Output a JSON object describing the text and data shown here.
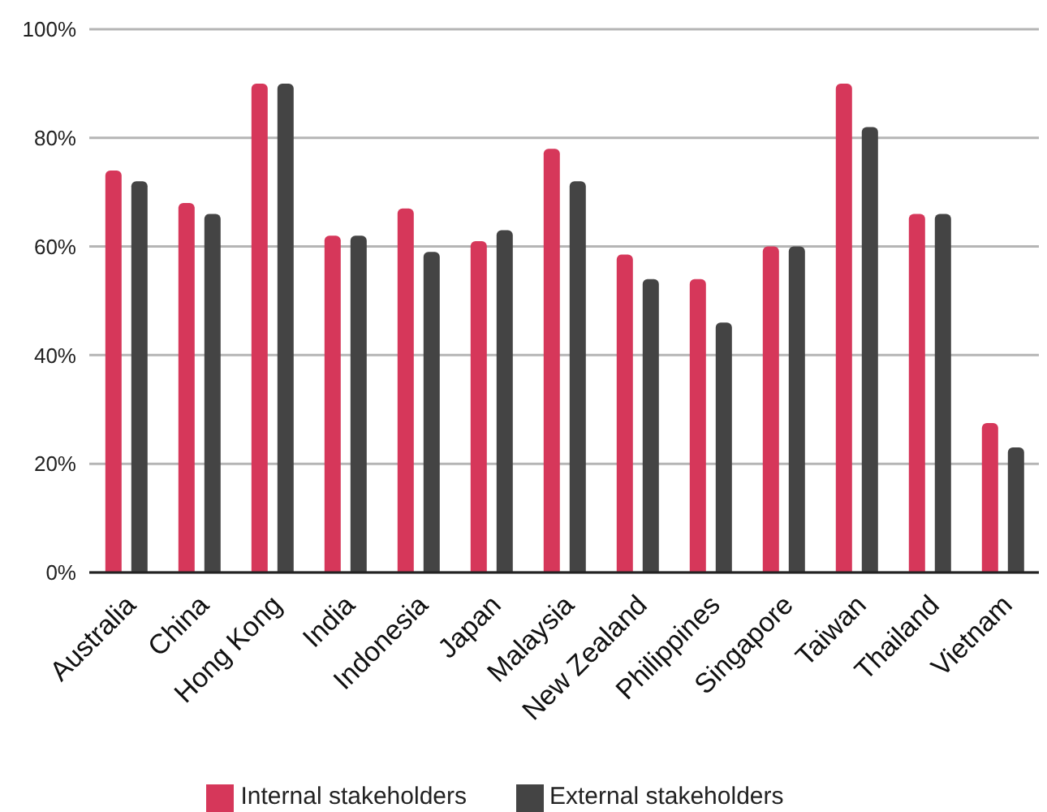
{
  "chart_data": {
    "type": "bar",
    "categories": [
      "Australia",
      "China",
      "Hong Kong",
      "India",
      "Indonesia",
      "Japan",
      "Malaysia",
      "New Zealand",
      "Philippines",
      "Singapore",
      "Taiwan",
      "Thailand",
      "Vietnam"
    ],
    "series": [
      {
        "name": "Internal stakeholders",
        "color": "#d6375a",
        "values": [
          74,
          68,
          90,
          62,
          67,
          61,
          78,
          58.5,
          54,
          60,
          90,
          66,
          27.5
        ]
      },
      {
        "name": "External stakeholders",
        "color": "#444444",
        "values": [
          72,
          66,
          90,
          62,
          59,
          63,
          72,
          54,
          46,
          60,
          82,
          66,
          23
        ]
      }
    ],
    "ylim": [
      0,
      100
    ],
    "yticks": [
      {
        "value": 0,
        "label": "0%"
      },
      {
        "value": 20,
        "label": "20%"
      },
      {
        "value": 40,
        "label": "40%"
      },
      {
        "value": 60,
        "label": "60%"
      },
      {
        "value": 80,
        "label": "80%"
      },
      {
        "value": 100,
        "label": "100%"
      }
    ],
    "grid": "y",
    "legend": "bottom"
  }
}
